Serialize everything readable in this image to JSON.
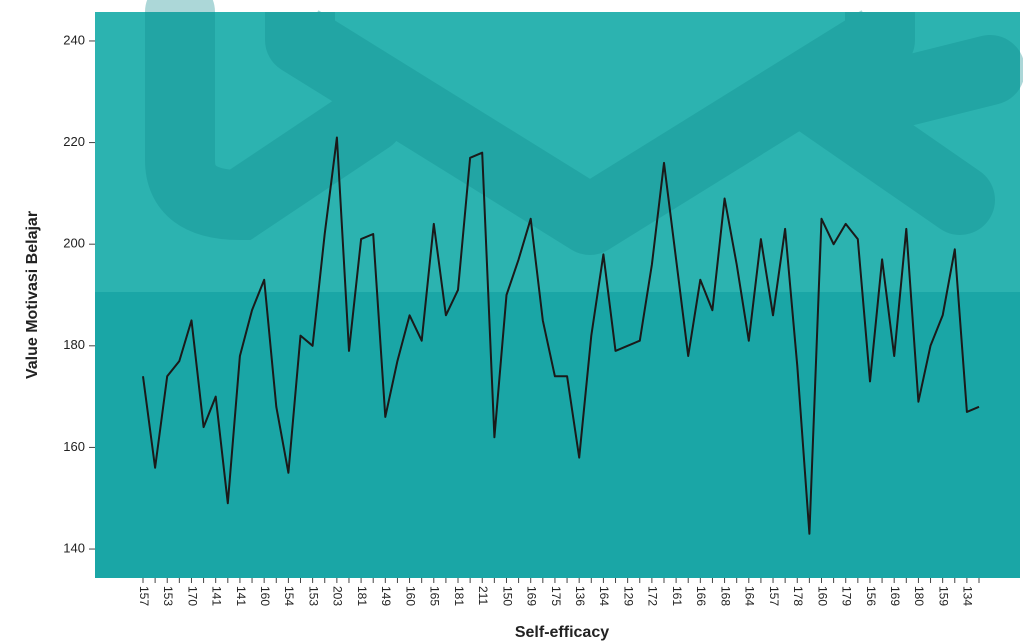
{
  "chart_data": {
    "type": "line",
    "x_label": "Self-efficacy",
    "y_label": "Value Motivasi Belajar",
    "categories": [
      "157",
      null,
      "153",
      null,
      "170",
      null,
      "141",
      null,
      "141",
      null,
      "160",
      null,
      "154",
      null,
      "153",
      null,
      "203",
      null,
      "181",
      null,
      "149",
      null,
      "160",
      null,
      "165",
      null,
      "181",
      null,
      "211",
      null,
      "150",
      null,
      "169",
      null,
      "175",
      null,
      "136",
      null,
      "164",
      null,
      "129",
      null,
      "172",
      null,
      "161",
      null,
      "166",
      null,
      "168",
      null,
      "164",
      null,
      "157",
      null,
      "178",
      null,
      "160",
      null,
      "179",
      null,
      "156",
      null,
      "169",
      null,
      "180",
      null,
      "159",
      null,
      "134",
      null
    ],
    "series": [
      {
        "name": "Value Motivasi Belajar",
        "color": "#1a1a1a",
        "values": [
          174,
          156,
          174,
          177,
          185,
          164,
          170,
          149,
          178,
          187,
          193,
          168,
          155,
          182,
          180,
          202,
          221,
          179,
          201,
          202,
          166,
          177,
          186,
          181,
          204,
          186,
          191,
          217,
          218,
          162,
          190,
          197,
          205,
          185,
          174,
          174,
          158,
          182,
          198,
          179,
          180,
          181,
          196,
          216,
          197,
          178,
          193,
          187,
          209,
          196,
          181,
          201,
          186,
          203,
          176,
          143,
          205,
          200,
          204,
          201,
          173,
          197,
          178,
          203,
          169,
          180,
          186,
          199,
          167,
          168
        ]
      }
    ],
    "ylim": [
      134.3,
      245.7
    ],
    "yticks": [
      140,
      160,
      180,
      200,
      220,
      240
    ]
  }
}
